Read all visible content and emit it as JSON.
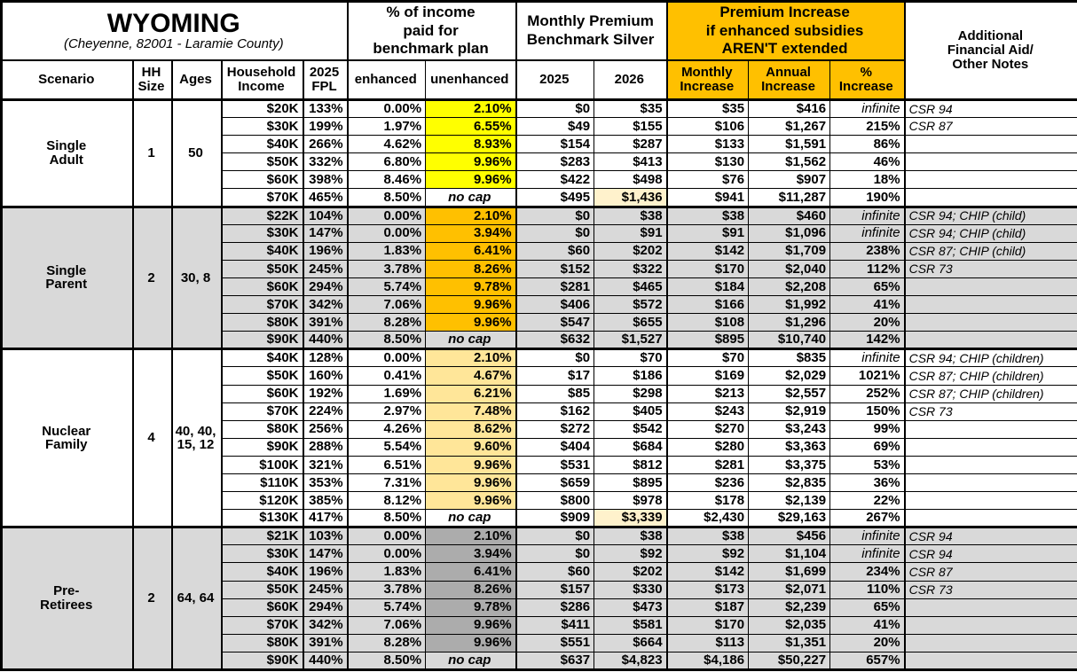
{
  "header": {
    "title": "WYOMING",
    "subtitle": "(Cheyenne, 82001 - Laramie County)",
    "income_pct_group": "% of income\npaid for\nbenchmark plan",
    "monthly_premium_group": "Monthly Premium\nBenchmark Silver",
    "premium_increase_group": "Premium Increase\nif enhanced subsidies\nAREN'T extended",
    "notes_group": "Additional\nFinancial Aid/\nOther Notes"
  },
  "columns": {
    "scenario": "Scenario",
    "hh_size": "HH\nSize",
    "ages": "Ages",
    "household_income": "Household\nIncome",
    "fpl": "2025\nFPL",
    "enhanced": "enhanced",
    "unenhanced": "unenhanced",
    "y2025": "2025",
    "y2026": "2026",
    "monthly_increase": "Monthly\nIncrease",
    "annual_increase": "Annual\nIncrease",
    "pct_increase": "%\nIncrease"
  },
  "colors": {
    "header_orange": "#FFC000",
    "row_shade_gray": "#D9D9D9",
    "highlight_2026_cream": "#FFF2CC",
    "unenhanced_single_adult": "#FFFF00",
    "unenhanced_single_parent": "#FFC000",
    "unenhanced_nuclear_family": "#FFE699",
    "unenhanced_pre_retirees": "#ACACAC"
  },
  "groups": [
    {
      "scenario": "Single\nAdult",
      "hh_size": "1",
      "ages": "50",
      "shaded": false,
      "unenhanced_color": "#FFFF00",
      "rows": [
        {
          "income": "$20K",
          "fpl": "133%",
          "enhanced": "0.00%",
          "unenhanced": "2.10%",
          "no_cap": false,
          "p2025": "$0",
          "p2026": "$35",
          "monthly": "$35",
          "annual": "$416",
          "pct": "infinite",
          "notes": "CSR 94"
        },
        {
          "income": "$30K",
          "fpl": "199%",
          "enhanced": "1.97%",
          "unenhanced": "6.55%",
          "no_cap": false,
          "p2025": "$49",
          "p2026": "$155",
          "monthly": "$106",
          "annual": "$1,267",
          "pct": "215%",
          "notes": "CSR 87"
        },
        {
          "income": "$40K",
          "fpl": "266%",
          "enhanced": "4.62%",
          "unenhanced": "8.93%",
          "no_cap": false,
          "p2025": "$154",
          "p2026": "$287",
          "monthly": "$133",
          "annual": "$1,591",
          "pct": "86%",
          "notes": ""
        },
        {
          "income": "$50K",
          "fpl": "332%",
          "enhanced": "6.80%",
          "unenhanced": "9.96%",
          "no_cap": false,
          "p2025": "$283",
          "p2026": "$413",
          "monthly": "$130",
          "annual": "$1,562",
          "pct": "46%",
          "notes": ""
        },
        {
          "income": "$60K",
          "fpl": "398%",
          "enhanced": "8.46%",
          "unenhanced": "9.96%",
          "no_cap": false,
          "p2025": "$422",
          "p2026": "$498",
          "monthly": "$76",
          "annual": "$907",
          "pct": "18%",
          "notes": ""
        },
        {
          "income": "$70K",
          "fpl": "465%",
          "enhanced": "8.50%",
          "unenhanced": "no cap",
          "no_cap": true,
          "p2025": "$495",
          "p2026": "$1,436",
          "monthly": "$941",
          "annual": "$11,287",
          "pct": "190%",
          "notes": ""
        }
      ]
    },
    {
      "scenario": "Single\nParent",
      "hh_size": "2",
      "ages": "30, 8",
      "shaded": true,
      "unenhanced_color": "#FFC000",
      "rows": [
        {
          "income": "$22K",
          "fpl": "104%",
          "enhanced": "0.00%",
          "unenhanced": "2.10%",
          "no_cap": false,
          "p2025": "$0",
          "p2026": "$38",
          "monthly": "$38",
          "annual": "$460",
          "pct": "infinite",
          "notes": "CSR 94; CHIP (child)"
        },
        {
          "income": "$30K",
          "fpl": "147%",
          "enhanced": "0.00%",
          "unenhanced": "3.94%",
          "no_cap": false,
          "p2025": "$0",
          "p2026": "$91",
          "monthly": "$91",
          "annual": "$1,096",
          "pct": "infinite",
          "notes": "CSR 94; CHIP (child)"
        },
        {
          "income": "$40K",
          "fpl": "196%",
          "enhanced": "1.83%",
          "unenhanced": "6.41%",
          "no_cap": false,
          "p2025": "$60",
          "p2026": "$202",
          "monthly": "$142",
          "annual": "$1,709",
          "pct": "238%",
          "notes": "CSR 87; CHIP (child)"
        },
        {
          "income": "$50K",
          "fpl": "245%",
          "enhanced": "3.78%",
          "unenhanced": "8.26%",
          "no_cap": false,
          "p2025": "$152",
          "p2026": "$322",
          "monthly": "$170",
          "annual": "$2,040",
          "pct": "112%",
          "notes": "CSR 73"
        },
        {
          "income": "$60K",
          "fpl": "294%",
          "enhanced": "5.74%",
          "unenhanced": "9.78%",
          "no_cap": false,
          "p2025": "$281",
          "p2026": "$465",
          "monthly": "$184",
          "annual": "$2,208",
          "pct": "65%",
          "notes": ""
        },
        {
          "income": "$70K",
          "fpl": "342%",
          "enhanced": "7.06%",
          "unenhanced": "9.96%",
          "no_cap": false,
          "p2025": "$406",
          "p2026": "$572",
          "monthly": "$166",
          "annual": "$1,992",
          "pct": "41%",
          "notes": ""
        },
        {
          "income": "$80K",
          "fpl": "391%",
          "enhanced": "8.28%",
          "unenhanced": "9.96%",
          "no_cap": false,
          "p2025": "$547",
          "p2026": "$655",
          "monthly": "$108",
          "annual": "$1,296",
          "pct": "20%",
          "notes": ""
        },
        {
          "income": "$90K",
          "fpl": "440%",
          "enhanced": "8.50%",
          "unenhanced": "no cap",
          "no_cap": true,
          "p2025": "$632",
          "p2026": "$1,527",
          "monthly": "$895",
          "annual": "$10,740",
          "pct": "142%",
          "notes": ""
        }
      ]
    },
    {
      "scenario": "Nuclear\nFamily",
      "hh_size": "4",
      "ages": "40, 40,\n15, 12",
      "shaded": false,
      "unenhanced_color": "#FFE699",
      "rows": [
        {
          "income": "$40K",
          "fpl": "128%",
          "enhanced": "0.00%",
          "unenhanced": "2.10%",
          "no_cap": false,
          "p2025": "$0",
          "p2026": "$70",
          "monthly": "$70",
          "annual": "$835",
          "pct": "infinite",
          "notes": "CSR 94; CHIP (children)"
        },
        {
          "income": "$50K",
          "fpl": "160%",
          "enhanced": "0.41%",
          "unenhanced": "4.67%",
          "no_cap": false,
          "p2025": "$17",
          "p2026": "$186",
          "monthly": "$169",
          "annual": "$2,029",
          "pct": "1021%",
          "notes": "CSR 87; CHIP (children)"
        },
        {
          "income": "$60K",
          "fpl": "192%",
          "enhanced": "1.69%",
          "unenhanced": "6.21%",
          "no_cap": false,
          "p2025": "$85",
          "p2026": "$298",
          "monthly": "$213",
          "annual": "$2,557",
          "pct": "252%",
          "notes": "CSR 87; CHIP (children)"
        },
        {
          "income": "$70K",
          "fpl": "224%",
          "enhanced": "2.97%",
          "unenhanced": "7.48%",
          "no_cap": false,
          "p2025": "$162",
          "p2026": "$405",
          "monthly": "$243",
          "annual": "$2,919",
          "pct": "150%",
          "notes": "CSR 73"
        },
        {
          "income": "$80K",
          "fpl": "256%",
          "enhanced": "4.26%",
          "unenhanced": "8.62%",
          "no_cap": false,
          "p2025": "$272",
          "p2026": "$542",
          "monthly": "$270",
          "annual": "$3,243",
          "pct": "99%",
          "notes": ""
        },
        {
          "income": "$90K",
          "fpl": "288%",
          "enhanced": "5.54%",
          "unenhanced": "9.60%",
          "no_cap": false,
          "p2025": "$404",
          "p2026": "$684",
          "monthly": "$280",
          "annual": "$3,363",
          "pct": "69%",
          "notes": ""
        },
        {
          "income": "$100K",
          "fpl": "321%",
          "enhanced": "6.51%",
          "unenhanced": "9.96%",
          "no_cap": false,
          "p2025": "$531",
          "p2026": "$812",
          "monthly": "$281",
          "annual": "$3,375",
          "pct": "53%",
          "notes": ""
        },
        {
          "income": "$110K",
          "fpl": "353%",
          "enhanced": "7.31%",
          "unenhanced": "9.96%",
          "no_cap": false,
          "p2025": "$659",
          "p2026": "$895",
          "monthly": "$236",
          "annual": "$2,835",
          "pct": "36%",
          "notes": ""
        },
        {
          "income": "$120K",
          "fpl": "385%",
          "enhanced": "8.12%",
          "unenhanced": "9.96%",
          "no_cap": false,
          "p2025": "$800",
          "p2026": "$978",
          "monthly": "$178",
          "annual": "$2,139",
          "pct": "22%",
          "notes": ""
        },
        {
          "income": "$130K",
          "fpl": "417%",
          "enhanced": "8.50%",
          "unenhanced": "no cap",
          "no_cap": true,
          "p2025": "$909",
          "p2026": "$3,339",
          "monthly": "$2,430",
          "annual": "$29,163",
          "pct": "267%",
          "notes": ""
        }
      ]
    },
    {
      "scenario": "Pre-\nRetirees",
      "hh_size": "2",
      "ages": "64, 64",
      "shaded": true,
      "unenhanced_color": "#ACACAC",
      "rows": [
        {
          "income": "$21K",
          "fpl": "103%",
          "enhanced": "0.00%",
          "unenhanced": "2.10%",
          "no_cap": false,
          "p2025": "$0",
          "p2026": "$38",
          "monthly": "$38",
          "annual": "$456",
          "pct": "infinite",
          "notes": "CSR 94"
        },
        {
          "income": "$30K",
          "fpl": "147%",
          "enhanced": "0.00%",
          "unenhanced": "3.94%",
          "no_cap": false,
          "p2025": "$0",
          "p2026": "$92",
          "monthly": "$92",
          "annual": "$1,104",
          "pct": "infinite",
          "notes": "CSR 94"
        },
        {
          "income": "$40K",
          "fpl": "196%",
          "enhanced": "1.83%",
          "unenhanced": "6.41%",
          "no_cap": false,
          "p2025": "$60",
          "p2026": "$202",
          "monthly": "$142",
          "annual": "$1,699",
          "pct": "234%",
          "notes": "CSR 87"
        },
        {
          "income": "$50K",
          "fpl": "245%",
          "enhanced": "3.78%",
          "unenhanced": "8.26%",
          "no_cap": false,
          "p2025": "$157",
          "p2026": "$330",
          "monthly": "$173",
          "annual": "$2,071",
          "pct": "110%",
          "notes": "CSR 73"
        },
        {
          "income": "$60K",
          "fpl": "294%",
          "enhanced": "5.74%",
          "unenhanced": "9.78%",
          "no_cap": false,
          "p2025": "$286",
          "p2026": "$473",
          "monthly": "$187",
          "annual": "$2,239",
          "pct": "65%",
          "notes": ""
        },
        {
          "income": "$70K",
          "fpl": "342%",
          "enhanced": "7.06%",
          "unenhanced": "9.96%",
          "no_cap": false,
          "p2025": "$411",
          "p2026": "$581",
          "monthly": "$170",
          "annual": "$2,035",
          "pct": "41%",
          "notes": ""
        },
        {
          "income": "$80K",
          "fpl": "391%",
          "enhanced": "8.28%",
          "unenhanced": "9.96%",
          "no_cap": false,
          "p2025": "$551",
          "p2026": "$664",
          "monthly": "$113",
          "annual": "$1,351",
          "pct": "20%",
          "notes": ""
        },
        {
          "income": "$90K",
          "fpl": "440%",
          "enhanced": "8.50%",
          "unenhanced": "no cap",
          "no_cap": true,
          "p2025": "$637",
          "p2026": "$4,823",
          "monthly": "$4,186",
          "annual": "$50,227",
          "pct": "657%",
          "notes": ""
        }
      ]
    }
  ]
}
